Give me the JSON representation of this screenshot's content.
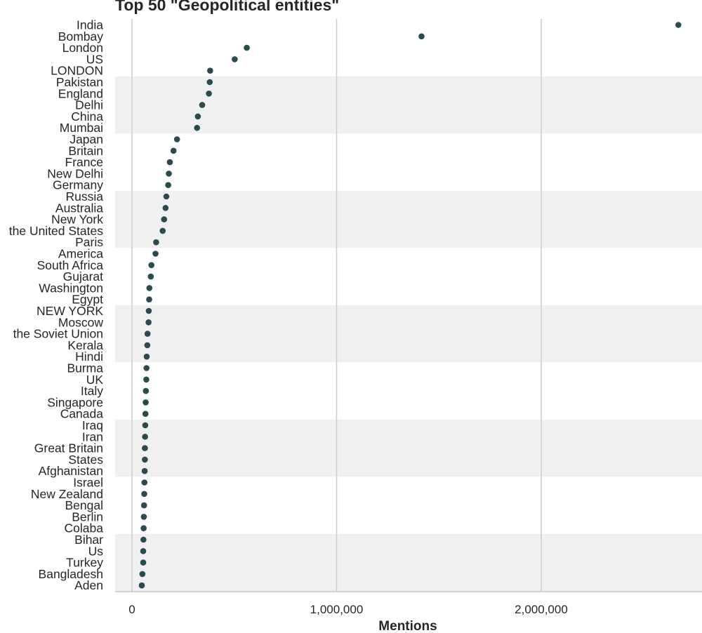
{
  "chart_data": {
    "type": "scatter",
    "title": "Top 50 \"Geopolitical entities\"",
    "xlabel": "Mentions",
    "ylabel": "",
    "xlim": [
      -80000,
      2800000
    ],
    "xticks": [
      0,
      1000000,
      2000000
    ],
    "xtick_labels": [
      "0",
      "1,000,000",
      "2,000,000"
    ],
    "grid": "vertical",
    "band_color": "#f0f0f0",
    "point_color": "#2b4a4e",
    "categories": [
      "India",
      "Bombay",
      "London",
      "US",
      "LONDON",
      "Pakistan",
      "England",
      "Delhi",
      "China",
      "Mumbai",
      "Japan",
      "Britain",
      "France",
      "New Delhi",
      "Germany",
      "Russia",
      "Australia",
      "New York",
      "the United States",
      "Paris",
      "America",
      "South Africa",
      "Gujarat",
      "Washington",
      "Egypt",
      "NEW YORK",
      "Moscow",
      "the Soviet Union",
      "Kerala",
      "Hindi",
      "Burma",
      "UK",
      "Italy",
      "Singapore",
      "Canada",
      "Iraq",
      "Iran",
      "Great Britain",
      "States",
      "Afghanistan",
      "Israel",
      "New Zealand",
      "Bengal",
      "Berlin",
      "Colaba",
      "Bihar",
      "Us",
      "Turkey",
      "Bangladesh",
      "Aden"
    ],
    "values": [
      2670000,
      1415000,
      561000,
      502000,
      382000,
      380000,
      376000,
      343000,
      322000,
      318000,
      220000,
      203000,
      185000,
      180000,
      177000,
      168000,
      164000,
      157000,
      150000,
      118000,
      115000,
      95000,
      92000,
      85000,
      84000,
      82000,
      81000,
      76000,
      75000,
      72000,
      71000,
      70000,
      68000,
      67000,
      66000,
      65000,
      64000,
      63000,
      63000,
      62000,
      61000,
      60000,
      59000,
      58000,
      57000,
      56000,
      55000,
      55000,
      51000,
      48000
    ]
  }
}
